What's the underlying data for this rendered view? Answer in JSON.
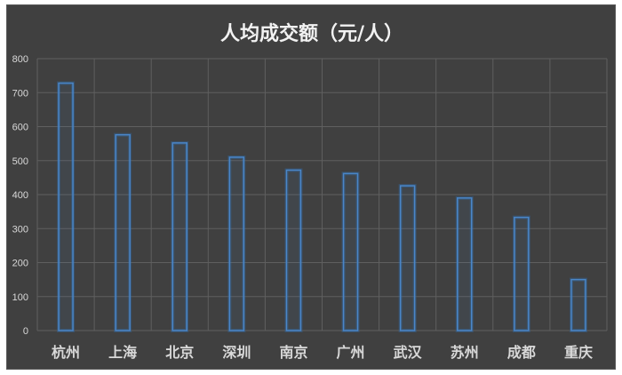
{
  "chart_data": {
    "type": "bar",
    "title": "人均成交额（元/人）",
    "categories": [
      "杭州",
      "上海",
      "北京",
      "深圳",
      "南京",
      "广州",
      "武汉",
      "苏州",
      "成都",
      "重庆"
    ],
    "values": [
      728,
      576,
      552,
      510,
      472,
      462,
      426,
      390,
      333,
      150
    ],
    "ylim": [
      0,
      800
    ],
    "yticks": [
      0,
      100,
      200,
      300,
      400,
      500,
      600,
      700,
      800
    ],
    "xlabel": "",
    "ylabel": "",
    "grid": true,
    "legend": "none",
    "colors": {
      "background": "#404040",
      "grid": "#5f5f5f",
      "bar_outline": "#4a86c8",
      "bar_glow": "#2f6fb5",
      "text": "#d9d9d9"
    }
  }
}
